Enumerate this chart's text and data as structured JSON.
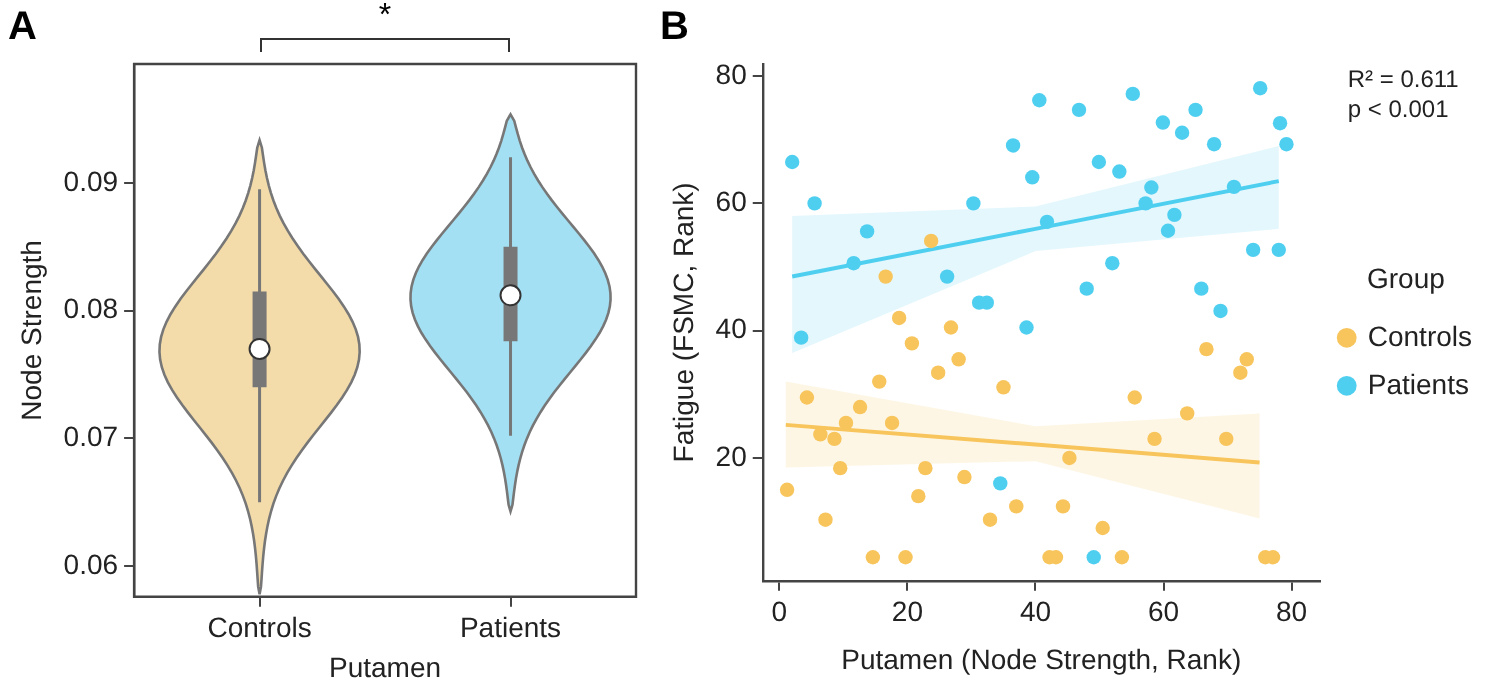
{
  "chart_data": [
    {
      "type": "box",
      "title": "A",
      "categories": [
        "Controls",
        "Patients"
      ],
      "xlabel": "Putamen",
      "ylabel": "Node Strength",
      "ylim": [
        0.0576,
        0.0993
      ],
      "yticks": [
        0.06,
        0.07,
        0.08,
        0.09
      ],
      "color": "#777777",
      "boxes": [
        {
          "low": 0.065,
          "q1": 0.074,
          "median": 0.077,
          "q3": 0.0815,
          "high": 0.0895
        },
        {
          "low": 0.0702,
          "q1": 0.0776,
          "median": 0.0812,
          "q3": 0.085,
          "high": 0.092
        }
      ],
      "annotations": [
        "*"
      ]
    },
    {
      "type": "scatter",
      "title": "B",
      "xlabel": "Putamen (Node Strength, Rank)",
      "ylabel": "Fatigue (FSMC, Rank)",
      "xlim": [
        -2.6,
        84.4
      ],
      "xticks": [
        0,
        20,
        40,
        60,
        80
      ],
      "ylim": [
        0.7,
        81.9
      ],
      "yticks": [
        20,
        40,
        60,
        80
      ],
      "legend": "right",
      "legend_title": "Group",
      "marker": "circle",
      "annotations": [
        "R² = 0.611",
        "p < 0.001"
      ],
      "series": [
        {
          "name": "Controls",
          "color": "#f7c55c",
          "x": [
            1.2,
            4.3,
            6.4,
            8.6,
            7.2,
            9.5,
            10.4,
            12.6,
            14.6,
            15.6,
            16.6,
            17.6,
            18.7,
            19.7,
            20.7,
            21.7,
            22.8,
            23.7,
            24.8,
            26.8,
            28,
            28.9,
            32.9,
            35,
            37,
            42.2,
            43.2,
            44.3,
            45.3,
            50.5,
            53.5,
            55.5,
            58.6,
            63.7,
            66.7,
            69.8,
            72,
            73,
            75.9,
            77.1
          ],
          "values": [
            15,
            29.5,
            23.7,
            23,
            10.3,
            18.4,
            25.5,
            28,
            4.4,
            32,
            48.5,
            25.5,
            42,
            4.4,
            38,
            14,
            18.4,
            54.1,
            33.4,
            40.5,
            35.5,
            17,
            10.3,
            31.1,
            12.4,
            4.4,
            4.4,
            12.4,
            20,
            9,
            4.4,
            29.5,
            23,
            27,
            37.1,
            23,
            33.4,
            35.5,
            4.4,
            4.4
          ]
        },
        {
          "name": "Patients",
          "color": "#4fcff0",
          "x": [
            2,
            3.4,
            5.5,
            13.7,
            11.6,
            26.2,
            30.3,
            31.2,
            32.4,
            34.5,
            36.5,
            40.6,
            39.5,
            38.6,
            41.8,
            46.8,
            48,
            49.9,
            49.1,
            52,
            53.1,
            55.2,
            57.2,
            58.1,
            59.9,
            62.9,
            65,
            75.1,
            78.2,
            79.2,
            67.9,
            71,
            61.7,
            60.7,
            74,
            78,
            65.9,
            68.9
          ],
          "values": [
            66.5,
            38.9,
            60,
            55.6,
            50.6,
            48.5,
            60,
            44.4,
            44.4,
            16,
            69.1,
            76.2,
            64.1,
            40.5,
            57.1,
            74.7,
            46.6,
            66.5,
            4.4,
            50.6,
            65,
            77.2,
            60,
            62.5,
            72.7,
            71.1,
            74.7,
            78.1,
            72.6,
            69.3,
            69.3,
            62.6,
            58.2,
            55.7,
            52.7,
            52.7,
            46.6,
            43.1
          ]
        },
        {
          "type": "line",
          "marker": "none",
          "color": "#f7c55c",
          "x": [
            1,
            40,
            75
          ],
          "values": [
            25.2,
            22.1,
            19.3
          ],
          "lower": [
            18.5,
            19.5,
            10.5
          ],
          "upper": [
            32,
            25,
            27
          ]
        },
        {
          "type": "line",
          "marker": "none",
          "color": "#4fcff0",
          "x": [
            2,
            40,
            78
          ],
          "values": [
            48.5,
            56,
            63.5
          ],
          "lower": [
            36.5,
            52.5,
            56
          ],
          "upper": [
            58,
            59.5,
            69
          ]
        }
      ]
    }
  ]
}
